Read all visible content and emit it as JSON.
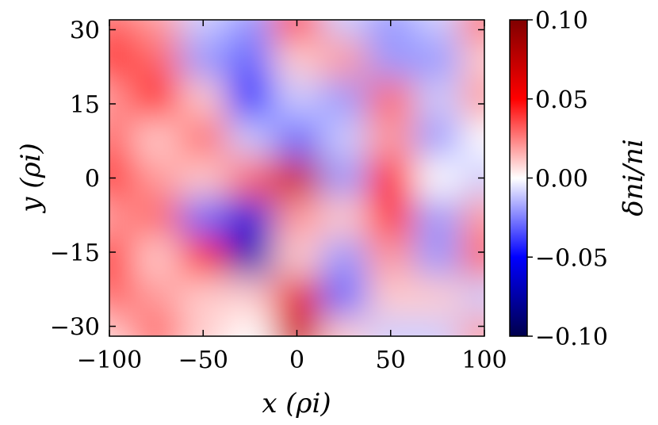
{
  "chart_data": {
    "type": "heatmap",
    "title": "",
    "xlabel": "x (ρi)",
    "ylabel": "y (ρi)",
    "colorbar_label": "δni/ni",
    "xlim": [
      -100,
      100
    ],
    "ylim": [
      -32,
      32
    ],
    "clim": [
      -0.1,
      0.1
    ],
    "x_ticks": [
      "−100",
      "−50",
      "0",
      "50",
      "100"
    ],
    "x_tick_values": [
      -100,
      -50,
      0,
      50,
      100
    ],
    "y_ticks": [
      "30",
      "15",
      "0",
      "−15",
      "−30"
    ],
    "y_tick_values": [
      30,
      15,
      0,
      -15,
      -30
    ],
    "colorbar_ticks": [
      "0.10",
      "0.05",
      "0.00",
      "−0.05",
      "−0.10"
    ],
    "colorbar_tick_values": [
      0.1,
      0.05,
      0.0,
      -0.05,
      -0.1
    ],
    "colormap": "seismic",
    "colors": {
      "low": "#00004c",
      "blue": "#0000ff",
      "white": "#ffffff",
      "red": "#ff0000",
      "high": "#800000"
    },
    "x_grid": [
      -100,
      -75,
      -50,
      -25,
      0,
      25,
      50,
      75,
      100
    ],
    "y_grid": [
      32,
      24,
      16,
      8,
      0,
      -8,
      -16,
      -24,
      -32
    ],
    "z": [
      [
        0.03,
        0.02,
        -0.01,
        -0.02,
        0.04,
        -0.01,
        -0.02,
        -0.01,
        0.03
      ],
      [
        0.04,
        0.03,
        -0.02,
        -0.03,
        0.01,
        0.02,
        -0.02,
        -0.02,
        0.01
      ],
      [
        0.02,
        0.05,
        0.01,
        -0.05,
        -0.01,
        -0.02,
        0.03,
        -0.01,
        0.02
      ],
      [
        0.03,
        0.01,
        0.03,
        -0.01,
        -0.03,
        -0.01,
        0.02,
        -0.02,
        0.0
      ],
      [
        0.04,
        0.02,
        0.01,
        0.03,
        0.07,
        -0.02,
        0.05,
        0.0,
        -0.01
      ],
      [
        0.02,
        0.03,
        -0.03,
        -0.06,
        0.02,
        0.01,
        0.04,
        -0.02,
        0.02
      ],
      [
        0.04,
        0.01,
        0.05,
        -0.07,
        0.01,
        -0.02,
        0.02,
        -0.02,
        0.03
      ],
      [
        0.03,
        0.02,
        0.01,
        0.01,
        0.06,
        -0.03,
        0.01,
        0.01,
        -0.01
      ],
      [
        0.01,
        0.03,
        0.01,
        0.0,
        0.07,
        0.01,
        -0.01,
        -0.01,
        0.02
      ]
    ]
  }
}
